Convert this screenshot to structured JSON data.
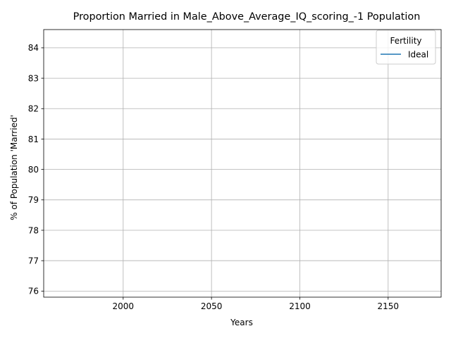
{
  "chart_data": {
    "type": "line",
    "title": "Proportion Married in Male_Above_Average_IQ_scoring_-1 Population",
    "xlabel": "Years",
    "ylabel": "% of Population 'Married'",
    "xlim": [
      1955,
      2180
    ],
    "ylim": [
      75.8,
      84.6
    ],
    "x_ticks": [
      2000,
      2050,
      2100,
      2150
    ],
    "y_ticks": [
      76,
      77,
      78,
      79,
      80,
      81,
      82,
      83,
      84
    ],
    "grid": true,
    "legend": {
      "title": "Fertility",
      "placement": "top-right",
      "entries": [
        {
          "label": "Ideal",
          "color": "#1f77b4"
        }
      ]
    },
    "series": [
      {
        "name": "Ideal",
        "color": "#1f77b4",
        "x": [],
        "y": []
      }
    ]
  }
}
